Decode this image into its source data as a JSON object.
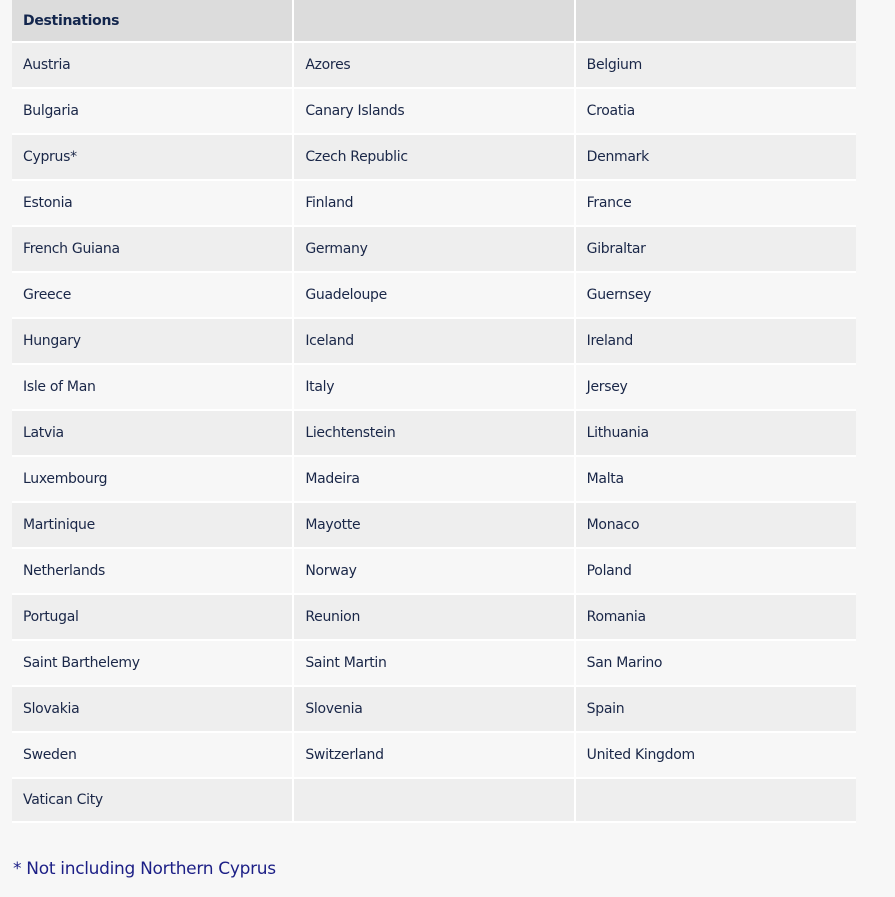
{
  "table": {
    "headers": [
      "Destinations",
      "",
      ""
    ],
    "rows": [
      [
        "Austria",
        "Azores",
        "Belgium"
      ],
      [
        "Bulgaria",
        "Canary Islands",
        "Croatia"
      ],
      [
        "Cyprus*",
        "Czech Republic",
        "Denmark"
      ],
      [
        "Estonia",
        "Finland",
        "France"
      ],
      [
        "French Guiana",
        "Germany",
        "Gibraltar"
      ],
      [
        "Greece",
        "Guadeloupe",
        "Guernsey"
      ],
      [
        "Hungary",
        "Iceland",
        "Ireland"
      ],
      [
        "Isle of Man",
        "Italy",
        "Jersey"
      ],
      [
        "Latvia",
        "Liechtenstein",
        "Lithuania"
      ],
      [
        "Luxembourg",
        "Madeira",
        "Malta"
      ],
      [
        "Martinique",
        "Mayotte",
        "Monaco"
      ],
      [
        "Netherlands",
        "Norway",
        "Poland"
      ],
      [
        "Portugal",
        "Reunion",
        "Romania"
      ],
      [
        "Saint Barthelemy",
        "Saint Martin",
        "San Marino"
      ],
      [
        "Slovakia",
        "Slovenia",
        "Spain"
      ],
      [
        "Sweden",
        "Switzerland",
        "United Kingdom"
      ],
      [
        "Vatican City",
        "",
        ""
      ]
    ]
  },
  "footnote": "* Not including Northern Cyprus"
}
